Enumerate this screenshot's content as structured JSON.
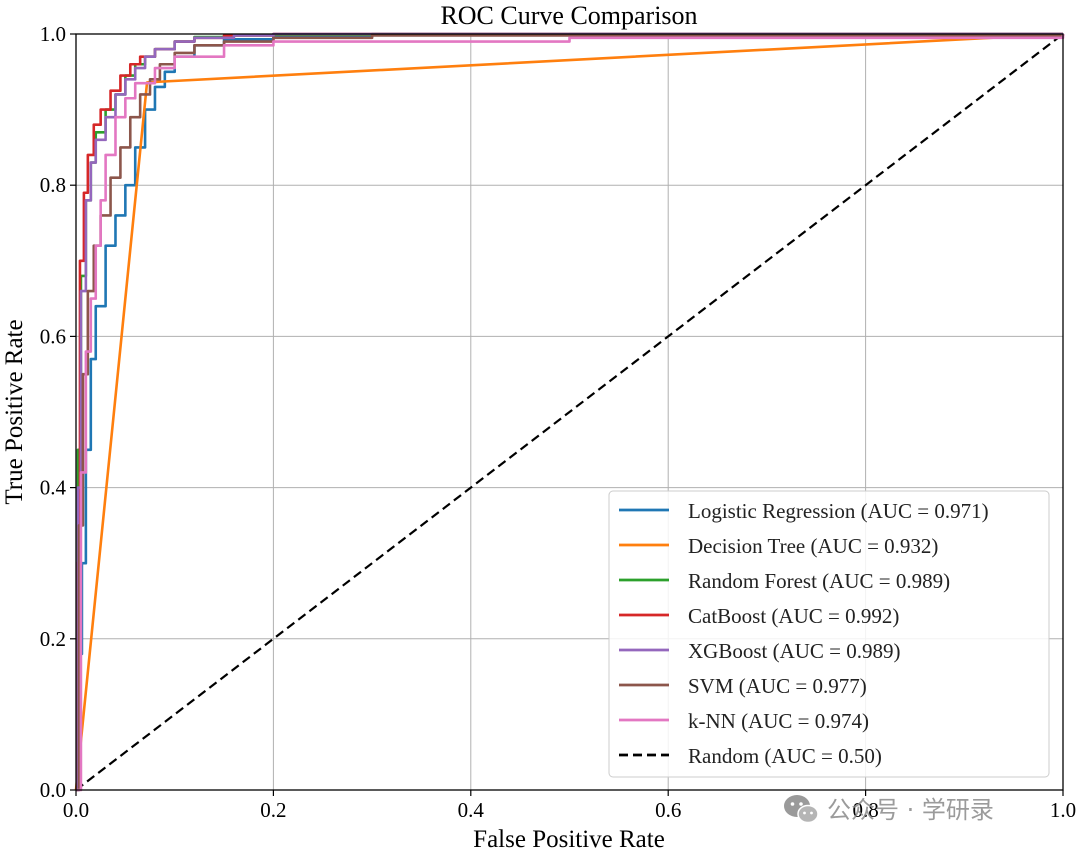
{
  "chart_data": {
    "type": "line",
    "title": "ROC Curve Comparison",
    "xlabel": "False Positive Rate",
    "ylabel": "True Positive Rate",
    "xlim": [
      0,
      1
    ],
    "ylim": [
      0,
      1
    ],
    "xticks": [
      "0.0",
      "0.2",
      "0.4",
      "0.6",
      "0.8",
      "1.0"
    ],
    "yticks": [
      "0.0",
      "0.2",
      "0.4",
      "0.6",
      "0.8",
      "1.0"
    ],
    "xtick_values": [
      0,
      0.2,
      0.4,
      0.6,
      0.8,
      1.0
    ],
    "ytick_values": [
      0,
      0.2,
      0.4,
      0.6,
      0.8,
      1.0
    ],
    "grid": true,
    "legend_position": "lower-right",
    "series": [
      {
        "name": "Logistic Regression (AUC = 0.971)",
        "color": "#1f77b4",
        "dashed": false,
        "x": [
          0,
          0.003,
          0.006,
          0.01,
          0.015,
          0.02,
          0.03,
          0.04,
          0.05,
          0.06,
          0.07,
          0.08,
          0.09,
          0.1,
          0.12,
          0.15,
          0.2,
          0.3,
          0.5,
          1.0
        ],
        "y": [
          0,
          0.18,
          0.3,
          0.45,
          0.57,
          0.64,
          0.72,
          0.76,
          0.8,
          0.85,
          0.9,
          0.93,
          0.95,
          0.97,
          0.985,
          0.993,
          0.997,
          0.999,
          1.0,
          1.0
        ]
      },
      {
        "name": "Decision Tree (AUC = 0.932)",
        "color": "#ff7f0e",
        "dashed": false,
        "x": [
          0,
          0.072,
          1.0
        ],
        "y": [
          0,
          0.936,
          1.0
        ]
      },
      {
        "name": "Random Forest (AUC = 0.989)",
        "color": "#2ca02c",
        "dashed": false,
        "x": [
          0,
          0.002,
          0.005,
          0.01,
          0.015,
          0.02,
          0.03,
          0.04,
          0.05,
          0.06,
          0.07,
          0.08,
          0.1,
          0.12,
          0.15,
          0.2,
          0.3,
          1.0
        ],
        "y": [
          0,
          0.45,
          0.68,
          0.78,
          0.83,
          0.87,
          0.9,
          0.92,
          0.945,
          0.96,
          0.97,
          0.98,
          0.99,
          0.996,
          0.998,
          0.999,
          1.0,
          1.0
        ]
      },
      {
        "name": "CatBoost (AUC = 0.992)",
        "color": "#d62728",
        "dashed": false,
        "x": [
          0,
          0.001,
          0.004,
          0.008,
          0.012,
          0.018,
          0.025,
          0.035,
          0.045,
          0.055,
          0.065,
          0.08,
          0.1,
          0.12,
          0.15,
          0.2,
          1.0
        ],
        "y": [
          0,
          0.3,
          0.7,
          0.79,
          0.84,
          0.88,
          0.9,
          0.925,
          0.945,
          0.96,
          0.97,
          0.98,
          0.99,
          0.995,
          0.998,
          1.0,
          1.0
        ]
      },
      {
        "name": "XGBoost (AUC = 0.989)",
        "color": "#9467bd",
        "dashed": false,
        "x": [
          0,
          0.002,
          0.005,
          0.01,
          0.015,
          0.02,
          0.03,
          0.04,
          0.05,
          0.06,
          0.07,
          0.08,
          0.1,
          0.12,
          0.16,
          0.2,
          1.0
        ],
        "y": [
          0,
          0.4,
          0.66,
          0.78,
          0.83,
          0.86,
          0.89,
          0.92,
          0.94,
          0.955,
          0.97,
          0.98,
          0.99,
          0.995,
          0.998,
          1.0,
          1.0
        ]
      },
      {
        "name": "SVM (AUC = 0.977)",
        "color": "#8c564b",
        "dashed": false,
        "x": [
          0,
          0.003,
          0.007,
          0.012,
          0.018,
          0.025,
          0.035,
          0.045,
          0.055,
          0.065,
          0.075,
          0.085,
          0.1,
          0.12,
          0.15,
          0.2,
          0.3,
          1.0
        ],
        "y": [
          0,
          0.35,
          0.55,
          0.66,
          0.72,
          0.76,
          0.81,
          0.85,
          0.89,
          0.92,
          0.94,
          0.96,
          0.975,
          0.985,
          0.99,
          0.995,
          0.998,
          1.0
        ]
      },
      {
        "name": "k-NN (AUC = 0.974)",
        "color": "#e377c2",
        "dashed": false,
        "x": [
          0,
          0.005,
          0.01,
          0.015,
          0.02,
          0.025,
          0.03,
          0.04,
          0.05,
          0.06,
          0.08,
          0.1,
          0.15,
          0.2,
          0.5,
          1.0
        ],
        "y": [
          0,
          0.42,
          0.58,
          0.65,
          0.72,
          0.78,
          0.84,
          0.89,
          0.915,
          0.935,
          0.955,
          0.97,
          0.985,
          0.99,
          0.995,
          1.0
        ]
      },
      {
        "name": "Random (AUC = 0.50)",
        "color": "#000000",
        "dashed": true,
        "x": [
          0,
          1.0
        ],
        "y": [
          0,
          1.0
        ]
      }
    ]
  },
  "watermark": {
    "text": "公众号 · 学研录",
    "icon": "wechat-icon"
  }
}
